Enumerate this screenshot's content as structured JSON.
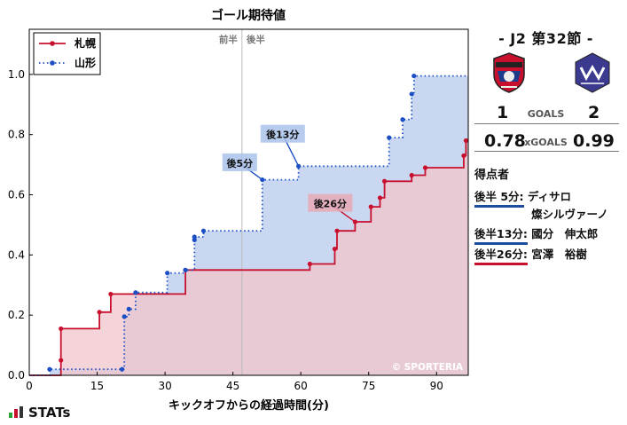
{
  "chart_data": {
    "type": "line",
    "title": "ゴール期待値",
    "xlabel": "キックオフからの経過時間(分)",
    "ylabel": "",
    "xlim": [
      0,
      97
    ],
    "ylim": [
      0,
      1.15
    ],
    "xticks": [
      0,
      15,
      30,
      45,
      60,
      75,
      90
    ],
    "yticks": [
      0.0,
      0.2,
      0.4,
      0.6,
      0.8,
      1.0
    ],
    "yticklabels": [
      "0.0",
      "0.2",
      "0.4",
      "0.6",
      "0.8",
      "1.0"
    ],
    "halftime": 47,
    "half_labels": [
      "前半",
      "後半"
    ],
    "legend_position": "top-left",
    "watermark": "© SPORTERIA",
    "series": [
      {
        "name": "札幌",
        "color": "#c8102e",
        "fill": "#f2c6cc",
        "style": "solid",
        "x": [
          0,
          7,
          7,
          15.5,
          18,
          34.5,
          62,
          67.5,
          68,
          72,
          75.5,
          77.5,
          78.5,
          84.5,
          87.5,
          96,
          96.5,
          97
        ],
        "y": [
          0,
          0.05,
          0.155,
          0.21,
          0.27,
          0.35,
          0.37,
          0.42,
          0.48,
          0.51,
          0.56,
          0.59,
          0.645,
          0.665,
          0.69,
          0.73,
          0.78,
          0.78
        ]
      },
      {
        "name": "山形",
        "color": "#1d4fc4",
        "fill": "#c3d3ee",
        "style": "dotted",
        "x": [
          0,
          4.5,
          20.5,
          21,
          22,
          23.5,
          30.5,
          34.5,
          36.5,
          36.5,
          38.5,
          51.5,
          59.5,
          79.5,
          82.5,
          84.5,
          85,
          97
        ],
        "y": [
          0,
          0.02,
          0.02,
          0.195,
          0.22,
          0.275,
          0.34,
          0.35,
          0.45,
          0.46,
          0.48,
          0.65,
          0.695,
          0.79,
          0.85,
          0.935,
          0.995,
          0.995
        ]
      }
    ],
    "annotations": [
      {
        "text": "後5分",
        "x": 51.5,
        "y": 0.65,
        "label_x": 46.5,
        "label_y": 0.705,
        "color": "#1d4fc4"
      },
      {
        "text": "後13分",
        "x": 59.5,
        "y": 0.695,
        "label_x": 56,
        "label_y": 0.8,
        "color": "#1d4fc4"
      },
      {
        "text": "後26分",
        "x": 72,
        "y": 0.51,
        "label_x": 66.5,
        "label_y": 0.57,
        "color": "#c8102e"
      }
    ]
  },
  "match": {
    "title": "- J2 第32節 -",
    "home_score": "1",
    "away_score": "2",
    "goals_label": "GOALS",
    "home_xg": "0.78",
    "away_xg": "0.99",
    "xg_label": "xGOALS",
    "scorers_header": "得点者",
    "scorers": [
      {
        "time": "後半 5分:",
        "name": "ディサロ",
        "name2": "燦シルヴァーノ",
        "team_color": "blue"
      },
      {
        "time": "後半13分:",
        "name": "國分　伸太郎",
        "name2": "",
        "team_color": "blue"
      },
      {
        "time": "後半26分:",
        "name": "宮澤　裕樹",
        "name2": "",
        "team_color": "red"
      }
    ],
    "home_crest_icon": "consadole-sapporo-crest-icon",
    "away_crest_icon": "montedio-yamagata-crest-icon"
  },
  "brand": {
    "logo_text": "STATs",
    "logo_icon": "stats-bars-icon"
  }
}
